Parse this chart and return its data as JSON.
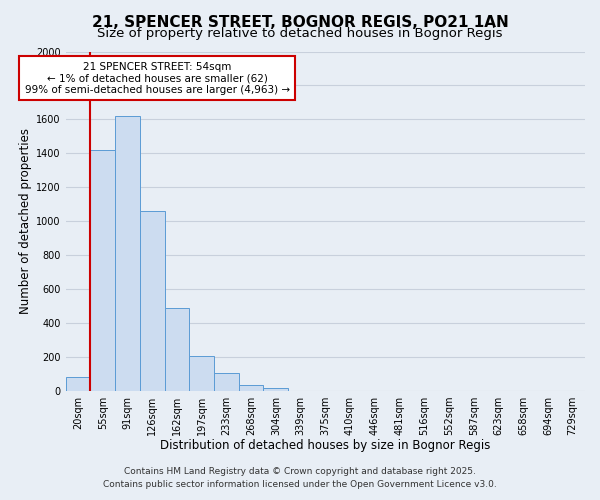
{
  "title": "21, SPENCER STREET, BOGNOR REGIS, PO21 1AN",
  "subtitle": "Size of property relative to detached houses in Bognor Regis",
  "bar_labels": [
    "20sqm",
    "55sqm",
    "91sqm",
    "126sqm",
    "162sqm",
    "197sqm",
    "233sqm",
    "268sqm",
    "304sqm",
    "339sqm",
    "375sqm",
    "410sqm",
    "446sqm",
    "481sqm",
    "516sqm",
    "552sqm",
    "587sqm",
    "623sqm",
    "658sqm",
    "694sqm",
    "729sqm"
  ],
  "bar_values": [
    80,
    1420,
    1620,
    1060,
    490,
    205,
    108,
    38,
    18,
    0,
    0,
    0,
    0,
    0,
    0,
    0,
    0,
    0,
    0,
    0,
    0
  ],
  "bar_color": "#ccdcf0",
  "bar_edge_color": "#5b9bd5",
  "grid_color": "#c8d0dc",
  "background_color": "#e8eef5",
  "vline_color": "#cc0000",
  "annotation_title": "21 SPENCER STREET: 54sqm",
  "annotation_line1": "← 1% of detached houses are smaller (62)",
  "annotation_line2": "99% of semi-detached houses are larger (4,963) →",
  "annotation_box_color": "#ffffff",
  "annotation_border_color": "#cc0000",
  "xlabel": "Distribution of detached houses by size in Bognor Regis",
  "ylabel": "Number of detached properties",
  "ylim": [
    0,
    2000
  ],
  "yticks": [
    0,
    200,
    400,
    600,
    800,
    1000,
    1200,
    1400,
    1600,
    1800,
    2000
  ],
  "footer_line1": "Contains HM Land Registry data © Crown copyright and database right 2025.",
  "footer_line2": "Contains public sector information licensed under the Open Government Licence v3.0.",
  "title_fontsize": 11,
  "subtitle_fontsize": 9.5,
  "axis_label_fontsize": 8.5,
  "tick_fontsize": 7,
  "annotation_fontsize": 7.5,
  "footer_fontsize": 6.5
}
